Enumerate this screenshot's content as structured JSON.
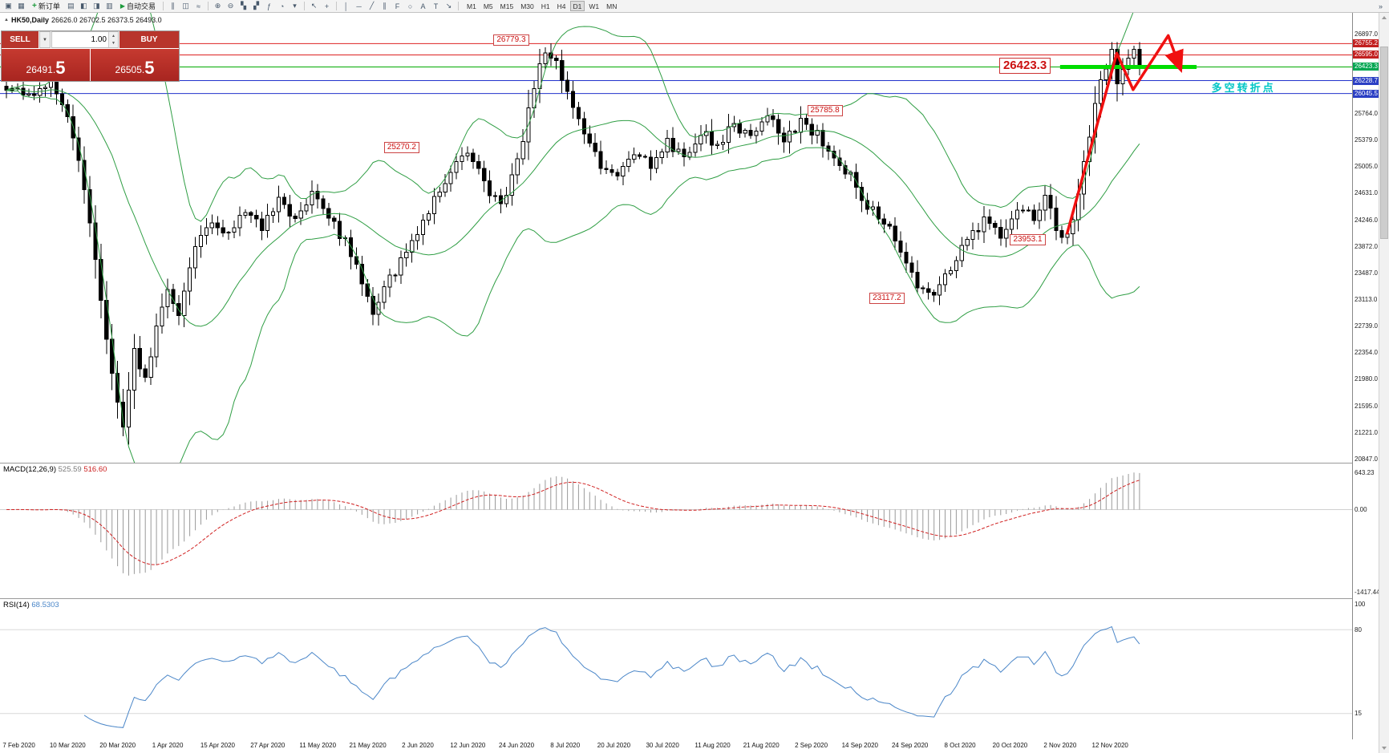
{
  "toolbar": {
    "new_order": "新订单",
    "auto_trading": "自动交易",
    "icons_text": {
      "plus": "+",
      "play": "▶"
    },
    "timeframes": [
      "M1",
      "M5",
      "M15",
      "M30",
      "H1",
      "H4",
      "D1",
      "W1",
      "MN"
    ],
    "active_timeframe": "D1",
    "icon_groups": {
      "g1": [
        {
          "name": "new-chart-icon",
          "glyph": "▣"
        },
        {
          "name": "chart-profiles-icon",
          "glyph": "▦"
        }
      ],
      "g2": [
        {
          "name": "market-watch-icon",
          "glyph": "▤"
        },
        {
          "name": "data-window-icon",
          "glyph": "◧"
        },
        {
          "name": "navigator-icon",
          "glyph": "◨"
        },
        {
          "name": "terminal-icon",
          "glyph": "▥"
        }
      ],
      "g3": [
        {
          "name": "bar-chart-icon",
          "glyph": "∥"
        },
        {
          "name": "candlestick-chart-icon",
          "glyph": "◫"
        },
        {
          "name": "line-chart-icon",
          "glyph": "≈"
        }
      ],
      "g4": [
        {
          "name": "zoom-in-icon",
          "glyph": "⊕"
        },
        {
          "name": "zoom-out-icon",
          "glyph": "⊖"
        }
      ],
      "g5": [
        {
          "name": "tile-windows-icon",
          "glyph": "▚"
        },
        {
          "name": "cascade-windows-icon",
          "glyph": "▞"
        }
      ],
      "g6": [
        {
          "name": "indicators-icon",
          "glyph": "ƒ"
        },
        {
          "name": "periods-icon",
          "glyph": "◔"
        },
        {
          "name": "templates-icon",
          "glyph": "▾"
        }
      ],
      "g7": [
        {
          "name": "cursor-icon",
          "glyph": "↖"
        },
        {
          "name": "crosshair-icon",
          "glyph": "+"
        }
      ],
      "g8": [
        {
          "name": "vertical-line-icon",
          "glyph": "│"
        },
        {
          "name": "horizontal-line-icon",
          "glyph": "─"
        },
        {
          "name": "trendline-icon",
          "glyph": "╱"
        },
        {
          "name": "channel-icon",
          "glyph": "∥"
        },
        {
          "name": "fibonacci-icon",
          "glyph": "F"
        },
        {
          "name": "ellipse-icon",
          "glyph": "○"
        },
        {
          "name": "text-icon",
          "glyph": "A"
        },
        {
          "name": "label-icon",
          "glyph": "T"
        },
        {
          "name": "arrow-tool-icon",
          "glyph": "↘"
        }
      ],
      "g9": [
        {
          "name": "toolbar-more-icon",
          "glyph": "»"
        }
      ]
    }
  },
  "symbol_info": {
    "marker": "▲",
    "symbol": "HK50,Daily",
    "ohlc": "26626.0 26702.5 26373.5 26493.0"
  },
  "trade_panel": {
    "sell_label": "SELL",
    "buy_label": "BUY",
    "caret": "▼",
    "volume": "1.00",
    "spin_up": "▲",
    "spin_down": "▼",
    "sell_price_small": "26491.",
    "sell_price_big": "5",
    "buy_price_small": "26505.",
    "buy_price_big": "5"
  },
  "chart_data": [
    {
      "type": "candlestick",
      "title": "HK50,Daily",
      "y_range": [
        20847.0,
        26897.0
      ],
      "candle_count": 205,
      "data_x_extent": 0.848,
      "axis_ticks": [
        26897.0,
        25764.0,
        25379.0,
        25005.0,
        24631.0,
        24246.0,
        23872.0,
        23487.0,
        23113.0,
        22739.0,
        22354.0,
        21980.0,
        21595.0,
        21221.0,
        20847.0
      ],
      "axis_badges": [
        {
          "value": "26755.2",
          "price": 26755.2,
          "bg": "#c22020"
        },
        {
          "value": "26595.0",
          "price": 26595.0,
          "bg": "#c22020"
        },
        {
          "value": "26423.3",
          "price": 26423.3,
          "bg": "#00a651"
        },
        {
          "value": "26228.7",
          "price": 26228.7,
          "bg": "#2b3fc4"
        },
        {
          "value": "26045.5",
          "price": 26045.5,
          "bg": "#2b3fc4"
        }
      ],
      "hlines": [
        {
          "price": 26755.2,
          "color": "#dd2222",
          "width": 1
        },
        {
          "price": 26595.0,
          "color": "#dd2222",
          "width": 1
        },
        {
          "price": 26423.3,
          "color": "#00aa00",
          "width": 1
        },
        {
          "price": 26228.7,
          "color": "#2233cc",
          "width": 1
        },
        {
          "price": 26045.5,
          "color": "#2233cc",
          "width": 1
        }
      ],
      "green_segment": {
        "price": 26423.3,
        "x_from": 0.784,
        "x_to": 0.885,
        "color": "#00dd00"
      },
      "bollinger": {
        "period": 20,
        "deviation": 2,
        "color": "#2f9e44"
      },
      "price_anchors": [
        [
          0,
          26150
        ],
        [
          4,
          26000
        ],
        [
          8,
          26180
        ],
        [
          11,
          25700
        ],
        [
          13,
          25100
        ],
        [
          15,
          24250
        ],
        [
          17,
          23100
        ],
        [
          19,
          22100
        ],
        [
          21,
          21300
        ],
        [
          23,
          22400
        ],
        [
          25,
          21950
        ],
        [
          27,
          22700
        ],
        [
          29,
          23250
        ],
        [
          31,
          22950
        ],
        [
          34,
          23850
        ],
        [
          37,
          24250
        ],
        [
          40,
          24050
        ],
        [
          43,
          24400
        ],
        [
          46,
          24150
        ],
        [
          49,
          24550
        ],
        [
          52,
          24250
        ],
        [
          55,
          24600
        ],
        [
          58,
          24250
        ],
        [
          61,
          23950
        ],
        [
          64,
          23350
        ],
        [
          66,
          22950
        ],
        [
          68,
          23300
        ],
        [
          71,
          23650
        ],
        [
          74,
          24100
        ],
        [
          77,
          24550
        ],
        [
          80,
          24950
        ],
        [
          83,
          25250
        ],
        [
          86,
          24750
        ],
        [
          89,
          24450
        ],
        [
          92,
          25050
        ],
        [
          95,
          26150
        ],
        [
          97,
          26680
        ],
        [
          99,
          26450
        ],
        [
          101,
          26050
        ],
        [
          104,
          25500
        ],
        [
          107,
          25050
        ],
        [
          110,
          24900
        ],
        [
          113,
          25250
        ],
        [
          116,
          25050
        ],
        [
          119,
          25350
        ],
        [
          122,
          25150
        ],
        [
          125,
          25500
        ],
        [
          128,
          25300
        ],
        [
          131,
          25600
        ],
        [
          134,
          25400
        ],
        [
          137,
          25750
        ],
        [
          140,
          25350
        ],
        [
          143,
          25650
        ],
        [
          146,
          25450
        ],
        [
          149,
          25150
        ],
        [
          152,
          24850
        ],
        [
          155,
          24450
        ],
        [
          158,
          24250
        ],
        [
          161,
          23750
        ],
        [
          164,
          23350
        ],
        [
          167,
          23200
        ],
        [
          170,
          23550
        ],
        [
          173,
          23950
        ],
        [
          176,
          24250
        ],
        [
          179,
          24050
        ],
        [
          182,
          24450
        ],
        [
          185,
          24250
        ],
        [
          187,
          24550
        ],
        [
          189,
          24150
        ],
        [
          191,
          23990
        ],
        [
          193,
          24650
        ],
        [
          195,
          25450
        ],
        [
          197,
          26250
        ],
        [
          199,
          26680
        ],
        [
          200,
          26150
        ],
        [
          201,
          26380
        ],
        [
          202,
          26600
        ],
        [
          203,
          26720
        ],
        [
          204,
          26493
        ]
      ],
      "annotations": [
        {
          "text": "26779.3",
          "xf": 0.365,
          "price": 26790,
          "style": "tag"
        },
        {
          "text": "26423.3",
          "xf": 0.739,
          "price": 26430,
          "style": "tag-large"
        },
        {
          "text": "25785.8",
          "xf": 0.597,
          "price": 25786,
          "style": "tag"
        },
        {
          "text": "25270.2",
          "xf": 0.284,
          "price": 25270,
          "style": "tag"
        },
        {
          "text": "23953.1",
          "xf": 0.747,
          "price": 23953,
          "style": "tag"
        },
        {
          "text": "23117.2",
          "xf": 0.643,
          "price": 23117,
          "style": "tag"
        },
        {
          "text": "多空转折点",
          "xf": 0.896,
          "price": 26150,
          "style": "cyan-text"
        }
      ],
      "trend_arrow": {
        "color": "#f01010",
        "points": [
          [
            0.789,
            24040
          ],
          [
            0.826,
            26620
          ],
          [
            0.838,
            26100
          ],
          [
            0.864,
            26870
          ],
          [
            0.872,
            26450
          ]
        ]
      },
      "dates": [
        "7 Feb 2020",
        "10 Mar 2020",
        "20 Mar 2020",
        "1 Apr 2020",
        "15 Apr 2020",
        "27 Apr 2020",
        "11 May 2020",
        "21 May 2020",
        "2 Jun 2020",
        "12 Jun 2020",
        "24 Jun 2020",
        "8 Jul 2020",
        "20 Jul 2020",
        "30 Jul 2020",
        "11 Aug 2020",
        "21 Aug 2020",
        "2 Sep 2020",
        "14 Sep 2020",
        "24 Sep 2020",
        "8 Oct 2020",
        "20 Oct 2020",
        "2 Nov 2020",
        "12 Nov 2020"
      ],
      "date_fracs": [
        0.002,
        0.05,
        0.087,
        0.124,
        0.161,
        0.198,
        0.235,
        0.272,
        0.309,
        0.346,
        0.382,
        0.418,
        0.454,
        0.49,
        0.527,
        0.563,
        0.6,
        0.636,
        0.673,
        0.71,
        0.747,
        0.784,
        0.821
      ]
    },
    {
      "type": "macd",
      "label": "MACD(12,26,9)",
      "values": [
        "525.59",
        "516.60"
      ],
      "params": [
        12,
        26,
        9
      ],
      "range": [
        -1417.44,
        643.23
      ],
      "axis_ticks": [
        {
          "text": "643.23",
          "value": 643.23
        },
        {
          "text": "0.00",
          "value": 0
        },
        {
          "text": "-1417.44",
          "value": -1417.44
        }
      ],
      "histogram_color": "#9a9a9a",
      "signal_color": "#d02020"
    },
    {
      "type": "rsi",
      "label": "RSI(14)",
      "value": "68.5303",
      "period": 14,
      "range": [
        0,
        100
      ],
      "levels": [
        80,
        15
      ],
      "axis_ticks": [
        {
          "text": "100",
          "value": 100
        },
        {
          "text": "80",
          "value": 80
        },
        {
          "text": "15",
          "value": 15
        }
      ],
      "line_color": "#4a86c8"
    }
  ]
}
